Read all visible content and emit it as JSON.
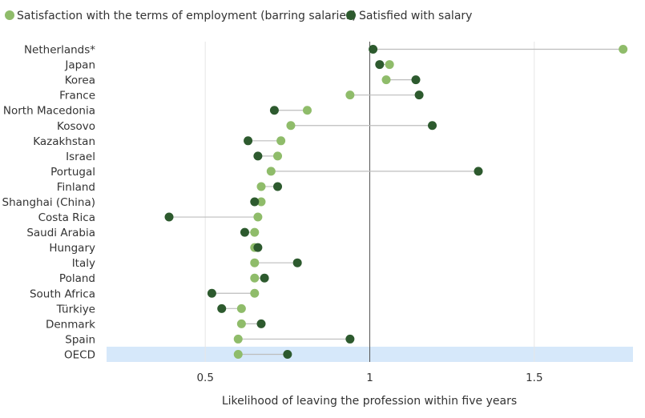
{
  "chart_data": {
    "type": "dumbbell",
    "title": "",
    "xlabel": "Likelihood of leaving the profession within five years",
    "ylabel": "",
    "xlim": [
      0.2,
      1.8
    ],
    "xticks": [
      {
        "value": 0.5,
        "label": "0.5"
      },
      {
        "value": 1,
        "label": "1"
      },
      {
        "value": 1.5,
        "label": "1.5"
      }
    ],
    "reference_line": 1,
    "highlight_category": "OECD",
    "legend_position": "top-left",
    "series": [
      {
        "name": "Satisfaction with the terms  of employment (barring salaries)",
        "color": "#8fbc6a"
      },
      {
        "name": "Satisfied with salary",
        "color": "#2d5a2e"
      }
    ],
    "categories": [
      "Netherlands*",
      "Japan",
      "Korea",
      "France",
      "North Macedonia",
      "Kosovo",
      "Kazakhstan",
      "Israel",
      "Portugal",
      "Finland",
      "Shanghai (China)",
      "Costa Rica",
      "Saudi Arabia",
      "Hungary",
      "Italy",
      "Poland",
      "South Africa",
      "Türkiye",
      "Denmark",
      "Spain",
      "OECD"
    ],
    "values": {
      "terms": [
        1.77,
        1.06,
        1.05,
        0.94,
        0.81,
        0.76,
        0.73,
        0.72,
        0.7,
        0.67,
        0.67,
        0.66,
        0.65,
        0.65,
        0.65,
        0.65,
        0.65,
        0.61,
        0.61,
        0.6,
        0.6
      ],
      "salary": [
        1.01,
        1.03,
        1.14,
        1.15,
        0.71,
        1.19,
        0.63,
        0.66,
        1.33,
        0.72,
        0.65,
        0.39,
        0.62,
        0.66,
        0.78,
        0.68,
        0.52,
        0.55,
        0.67,
        0.94,
        0.75
      ]
    }
  }
}
